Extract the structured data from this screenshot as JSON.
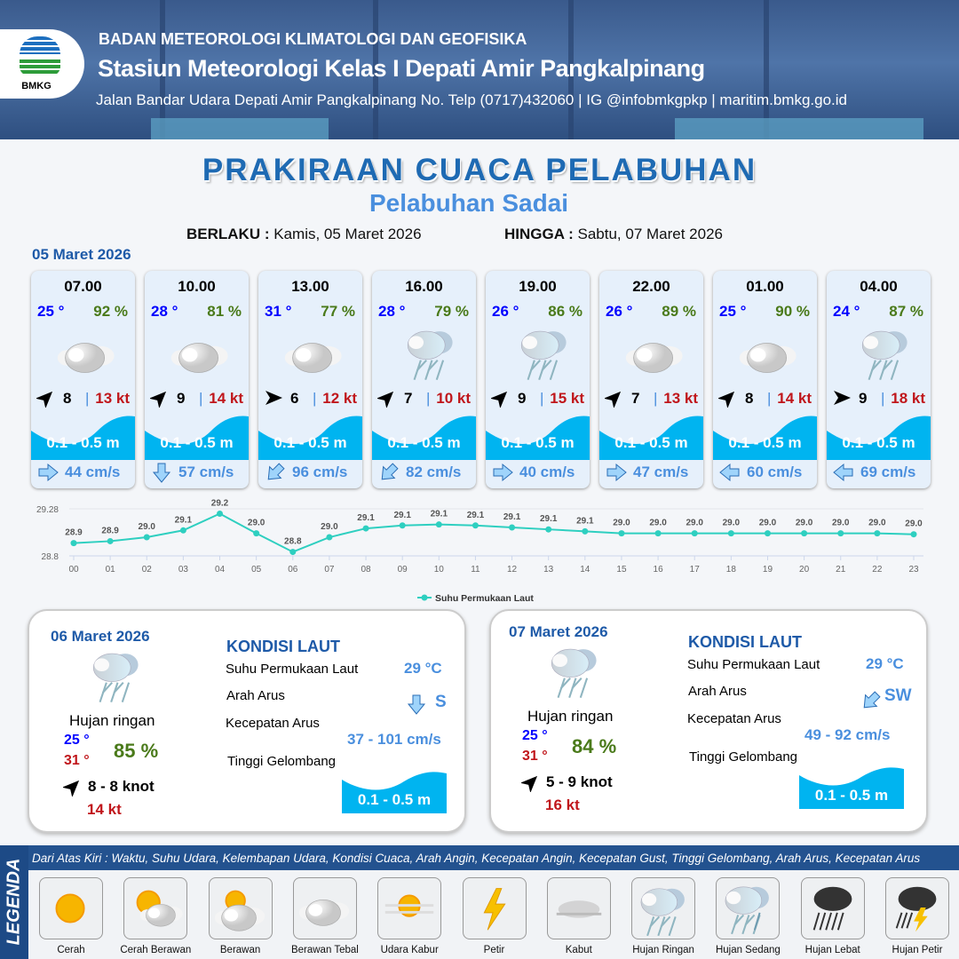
{
  "header": {
    "org": "BADAN METEOROLOGI KLIMATOLOGI DAN GEOFISIKA",
    "station": "Stasiun Meteorologi Kelas I Depati Amir Pangkalpinang",
    "address": "Jalan Bandar Udara Depati Amir Pangkalpinang No. Telp (0717)432060 | IG @infobmkgpkp | maritim.bmkg.go.id",
    "logo_text": "BMKG"
  },
  "title": "PRAKIRAAN CUACA PELABUHAN",
  "subtitle": "Pelabuhan Sadai",
  "validity": {
    "from_label": "BERLAKU :",
    "from": "Kamis, 05 Maret 2026",
    "to_label": "HINGGA :",
    "to": "Sabtu, 07 Maret 2026"
  },
  "day1": {
    "date": "05 Maret 2026",
    "cards": [
      {
        "time": "07.00",
        "temp": "25 °",
        "rh": "92 %",
        "icon": "thick-cloud",
        "wind_dir": "NE",
        "wind": "8",
        "sep": "|",
        "gust": "13 kt",
        "wave": "0.1 - 0.5 m",
        "current_dir": "E",
        "current": "44 cm/s"
      },
      {
        "time": "10.00",
        "temp": "28 °",
        "rh": "81 %",
        "icon": "thick-cloud",
        "wind_dir": "NE",
        "wind": "9",
        "sep": "|",
        "gust": "14 kt",
        "wave": "0.1 - 0.5 m",
        "current_dir": "S",
        "current": "57 cm/s"
      },
      {
        "time": "13.00",
        "temp": "31 °",
        "rh": "77 %",
        "icon": "thick-cloud",
        "wind_dir": "E",
        "wind": "6",
        "sep": "|",
        "gust": "12 kt",
        "wave": "0.1 - 0.5 m",
        "current_dir": "SW",
        "current": "96 cm/s"
      },
      {
        "time": "16.00",
        "temp": "28 °",
        "rh": "79 %",
        "icon": "light-rain",
        "wind_dir": "NE",
        "wind": "7",
        "sep": "|",
        "gust": "10 kt",
        "wave": "0.1 - 0.5 m",
        "current_dir": "SW",
        "current": "82 cm/s"
      },
      {
        "time": "19.00",
        "temp": "26 °",
        "rh": "86 %",
        "icon": "light-rain",
        "wind_dir": "NE",
        "wind": "9",
        "sep": "|",
        "gust": "15 kt",
        "wave": "0.1 - 0.5 m",
        "current_dir": "E",
        "current": "40 cm/s"
      },
      {
        "time": "22.00",
        "temp": "26 °",
        "rh": "89 %",
        "icon": "thick-cloud",
        "wind_dir": "NE",
        "wind": "7",
        "sep": "|",
        "gust": "13 kt",
        "wave": "0.1 - 0.5 m",
        "current_dir": "E",
        "current": "47 cm/s"
      },
      {
        "time": "01.00",
        "temp": "25 °",
        "rh": "90 %",
        "icon": "thick-cloud",
        "wind_dir": "NE",
        "wind": "8",
        "sep": "|",
        "gust": "14 kt",
        "wave": "0.1 - 0.5 m",
        "current_dir": "W",
        "current": "60 cm/s"
      },
      {
        "time": "04.00",
        "temp": "24 °",
        "rh": "87 %",
        "icon": "light-rain",
        "wind_dir": "E",
        "wind": "9",
        "sep": "|",
        "gust": "18 kt",
        "wave": "0.1 - 0.5 m",
        "current_dir": "W",
        "current": "69 cm/s"
      }
    ]
  },
  "chart_data": {
    "type": "line",
    "categories": [
      "00",
      "01",
      "02",
      "03",
      "04",
      "05",
      "06",
      "07",
      "08",
      "09",
      "10",
      "11",
      "12",
      "13",
      "14",
      "15",
      "16",
      "17",
      "18",
      "19",
      "20",
      "21",
      "22",
      "23"
    ],
    "series": [
      {
        "name": "Suhu Permukaan Laut",
        "values": [
          28.93,
          28.95,
          28.99,
          29.06,
          29.23,
          29.03,
          28.84,
          28.99,
          29.08,
          29.11,
          29.12,
          29.11,
          29.09,
          29.07,
          29.05,
          29.03,
          29.03,
          29.03,
          29.03,
          29.03,
          29.03,
          29.03,
          29.03,
          29.02
        ],
        "labels": [
          "28.9",
          "28.9",
          "29.0",
          "29.1",
          "29.2",
          "29.0",
          "28.8",
          "29.0",
          "29.1",
          "29.1",
          "29.1",
          "29.1",
          "29.1",
          "29.1",
          "29.1",
          "29.0",
          "29.0",
          "29.0",
          "29.0",
          "29.0",
          "29.0",
          "29.0",
          "29.0",
          "29.0"
        ]
      }
    ],
    "yticks": [
      "29.28",
      "28.8"
    ],
    "ylim": [
      28.8,
      29.28
    ],
    "legend": "bottom",
    "grid": true,
    "color": "#2ecfc0"
  },
  "panels": [
    {
      "date": "06 Maret 2026",
      "icon": "light-rain",
      "condition": "Hujan ringan",
      "tmin": "25 °",
      "tmax": "31 °",
      "rh": "85 %",
      "wind_dir": "NE",
      "wind": "8  - 8 knot",
      "gust": "14 kt",
      "kondisi": "KONDISI LAUT",
      "sst_label": "Suhu Permukaan Laut",
      "sst": "29 °C",
      "dir_label": "Arah Arus",
      "dir": "S",
      "speed_label": "Kecepatan Arus",
      "speed": "37  - 101 cm/s",
      "wave_label": "Tinggi Gelombang",
      "wave": "0.1 - 0.5 m"
    },
    {
      "date": "07 Maret 2026",
      "icon": "light-rain",
      "condition": "Hujan ringan",
      "tmin": "25 °",
      "tmax": "31 °",
      "rh": "84 %",
      "wind_dir": "NE",
      "wind": "5  - 9 knot",
      "gust": "16 kt",
      "kondisi": "KONDISI LAUT",
      "sst_label": "Suhu Permukaan Laut",
      "sst": "29 °C",
      "dir_label": "Arah Arus",
      "dir": "SW",
      "speed_label": "Kecepatan Arus",
      "speed": "49  - 92 cm/s",
      "wave_label": "Tinggi Gelombang",
      "wave": "0.1 - 0.5 m"
    }
  ],
  "legend": {
    "title": "LEGENDA",
    "description": "Dari Atas Kiri : Waktu, Suhu Udara, Kelembapan Udara, Kondisi Cuaca, Arah Angin, Kecepatan Angin, Kecepatan Gust, Tinggi Gelombang, Arah Arus, Kecepatan Arus",
    "items": [
      {
        "label": "Cerah",
        "icon": "sun"
      },
      {
        "label": "Cerah Berawan",
        "icon": "sun-cloud"
      },
      {
        "label": "Berawan",
        "icon": "cloud-sun"
      },
      {
        "label": "Berawan Tebal",
        "icon": "thick-cloud"
      },
      {
        "label": "Udara Kabur",
        "icon": "haze"
      },
      {
        "label": "Petir",
        "icon": "lightning"
      },
      {
        "label": "Kabut",
        "icon": "fog"
      },
      {
        "label": "Hujan Ringan",
        "icon": "light-rain"
      },
      {
        "label": "Hujan Sedang",
        "icon": "moderate-rain"
      },
      {
        "label": "Hujan Lebat",
        "icon": "heavy-rain"
      },
      {
        "label": "Hujan Petir",
        "icon": "thunderstorm"
      }
    ]
  },
  "colors": {
    "title": "#1e6ab3",
    "temp": "#0000ff",
    "rh": "#4a7a1a",
    "gust": "#c0161b",
    "wave": "#00b4f0",
    "current": "#4a8fde"
  }
}
